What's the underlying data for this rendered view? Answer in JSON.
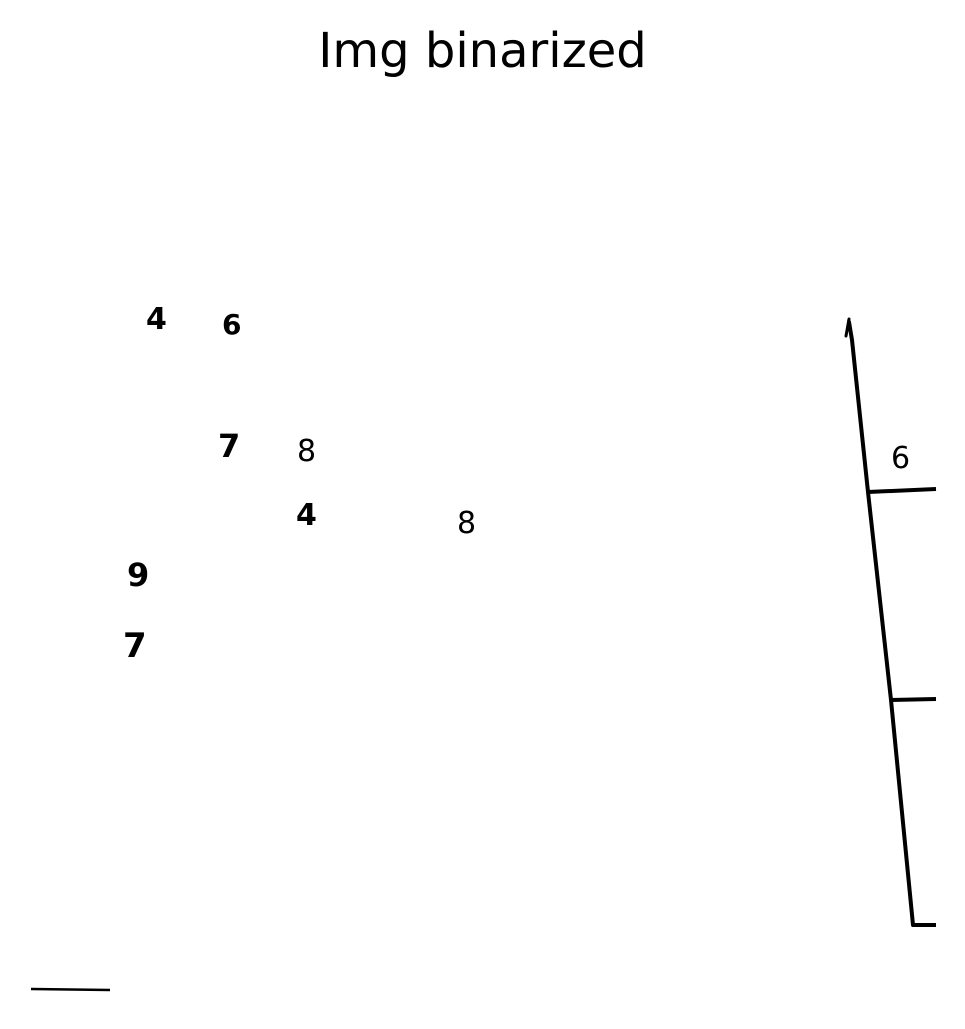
{
  "title": "Img binarized",
  "digits": [
    {
      "id": "digit-4-a",
      "text": "4",
      "bold": true
    },
    {
      "id": "digit-6-a",
      "text": "6",
      "bold": true
    },
    {
      "id": "digit-7-a",
      "text": "7",
      "bold": true
    },
    {
      "id": "digit-8-a",
      "text": "8",
      "bold": false
    },
    {
      "id": "digit-4-b",
      "text": "4",
      "bold": true
    },
    {
      "id": "digit-8-b",
      "text": "8",
      "bold": false
    },
    {
      "id": "digit-9",
      "text": "9",
      "bold": true
    },
    {
      "id": "digit-7-b",
      "text": "7",
      "bold": true
    },
    {
      "id": "digit-6-b",
      "text": "6",
      "bold": false
    }
  ]
}
